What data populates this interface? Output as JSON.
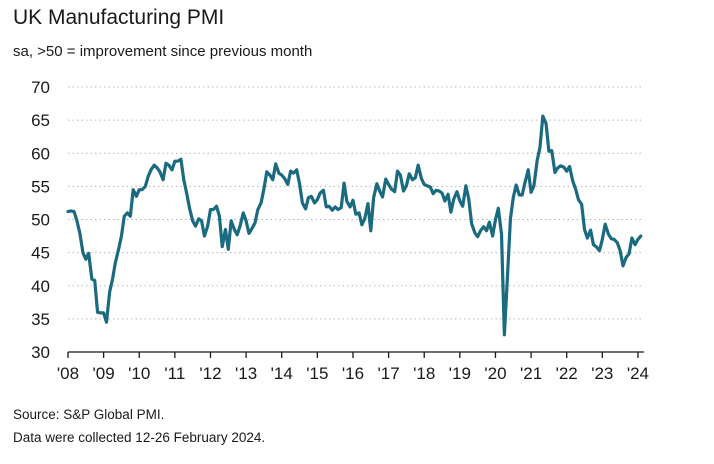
{
  "chart_data": {
    "type": "line",
    "title": "UK Manufacturing PMI",
    "subtitle": "sa, >50 = improvement since previous month",
    "xlabel": "",
    "ylabel": "",
    "ylim": [
      30,
      70
    ],
    "xlim": [
      2008.0,
      2024.17
    ],
    "grid": "horizontal-dotted",
    "line_color": "#1a6a80",
    "y_ticks": [
      "70",
      "65",
      "60",
      "55",
      "50",
      "45",
      "40",
      "35",
      "30"
    ],
    "y_tick_values": [
      70,
      65,
      60,
      55,
      50,
      45,
      40,
      35,
      30
    ],
    "x_tick_labels": [
      "'08",
      "'09",
      "'10",
      "'11",
      "'12",
      "'13",
      "'14",
      "'15",
      "'16",
      "'17",
      "'18",
      "'19",
      "'20",
      "'21",
      "'22",
      "'23",
      "'24"
    ],
    "x_tick_values": [
      2008,
      2009,
      2010,
      2011,
      2012,
      2013,
      2014,
      2015,
      2016,
      2017,
      2018,
      2019,
      2020,
      2021,
      2022,
      2023,
      2024
    ],
    "series": [
      {
        "name": "UK Manufacturing PMI",
        "x": [
          2008.0,
          2008.08,
          2008.17,
          2008.25,
          2008.33,
          2008.42,
          2008.5,
          2008.58,
          2008.67,
          2008.75,
          2008.83,
          2008.92,
          2009.0,
          2009.08,
          2009.17,
          2009.25,
          2009.33,
          2009.42,
          2009.5,
          2009.58,
          2009.67,
          2009.75,
          2009.83,
          2009.92,
          2010.0,
          2010.08,
          2010.17,
          2010.25,
          2010.33,
          2010.42,
          2010.5,
          2010.58,
          2010.67,
          2010.75,
          2010.83,
          2010.92,
          2011.0,
          2011.08,
          2011.17,
          2011.25,
          2011.33,
          2011.42,
          2011.5,
          2011.58,
          2011.67,
          2011.75,
          2011.83,
          2011.92,
          2012.0,
          2012.08,
          2012.17,
          2012.25,
          2012.33,
          2012.42,
          2012.5,
          2012.58,
          2012.67,
          2012.75,
          2012.83,
          2012.92,
          2013.0,
          2013.08,
          2013.17,
          2013.25,
          2013.33,
          2013.42,
          2013.5,
          2013.58,
          2013.67,
          2013.75,
          2013.83,
          2013.92,
          2014.0,
          2014.08,
          2014.17,
          2014.25,
          2014.33,
          2014.42,
          2014.5,
          2014.58,
          2014.67,
          2014.75,
          2014.83,
          2014.92,
          2015.0,
          2015.08,
          2015.17,
          2015.25,
          2015.33,
          2015.42,
          2015.5,
          2015.58,
          2015.67,
          2015.75,
          2015.83,
          2015.92,
          2016.0,
          2016.08,
          2016.17,
          2016.25,
          2016.33,
          2016.42,
          2016.5,
          2016.58,
          2016.67,
          2016.75,
          2016.83,
          2016.92,
          2017.0,
          2017.08,
          2017.17,
          2017.25,
          2017.33,
          2017.42,
          2017.5,
          2017.58,
          2017.67,
          2017.75,
          2017.83,
          2017.92,
          2018.0,
          2018.08,
          2018.17,
          2018.25,
          2018.33,
          2018.42,
          2018.5,
          2018.58,
          2018.67,
          2018.75,
          2018.83,
          2018.92,
          2019.0,
          2019.08,
          2019.17,
          2019.25,
          2019.33,
          2019.42,
          2019.5,
          2019.58,
          2019.67,
          2019.75,
          2019.83,
          2019.92,
          2020.0,
          2020.08,
          2020.17,
          2020.25,
          2020.33,
          2020.42,
          2020.5,
          2020.58,
          2020.67,
          2020.75,
          2020.83,
          2020.92,
          2021.0,
          2021.08,
          2021.17,
          2021.25,
          2021.33,
          2021.42,
          2021.5,
          2021.58,
          2021.67,
          2021.75,
          2021.83,
          2021.92,
          2022.0,
          2022.08,
          2022.17,
          2022.25,
          2022.33,
          2022.42,
          2022.5,
          2022.58,
          2022.67,
          2022.75,
          2022.83,
          2022.92,
          2023.0,
          2023.08,
          2023.17,
          2023.25,
          2023.33,
          2023.42,
          2023.5,
          2023.58,
          2023.67,
          2023.75,
          2023.83,
          2023.92,
          2024.0,
          2024.08
        ],
        "values": [
          51.2,
          51.3,
          51.2,
          49.8,
          48.0,
          45.0,
          44.0,
          44.9,
          41.0,
          40.8,
          36.0,
          35.9,
          35.9,
          34.5,
          39.1,
          41.0,
          43.5,
          45.5,
          47.5,
          50.5,
          51.0,
          50.5,
          54.5,
          53.5,
          54.5,
          54.5,
          55.0,
          56.5,
          57.5,
          58.2,
          57.8,
          57.2,
          56.0,
          58.5,
          58.2,
          57.5,
          58.8,
          58.8,
          59.1,
          56.0,
          54.0,
          51.5,
          49.8,
          49.0,
          50.1,
          49.8,
          47.5,
          49.0,
          51.5,
          51.5,
          52.0,
          50.5,
          45.9,
          48.5,
          45.5,
          49.8,
          48.5,
          47.7,
          49.0,
          51.0,
          49.8,
          47.9,
          48.7,
          49.5,
          51.5,
          52.5,
          54.6,
          57.2,
          56.7,
          56.0,
          58.4,
          57.0,
          56.7,
          56.2,
          55.3,
          57.3,
          57.0,
          57.5,
          55.4,
          52.5,
          51.6,
          53.3,
          53.5,
          52.5,
          53.0,
          54.0,
          54.4,
          51.9,
          52.0,
          51.4,
          51.9,
          51.5,
          51.8,
          55.5,
          52.7,
          51.9,
          52.9,
          50.8,
          51.0,
          49.2,
          50.1,
          52.4,
          48.3,
          53.3,
          55.4,
          54.3,
          53.4,
          56.1,
          55.3,
          54.6,
          54.2,
          57.3,
          56.7,
          54.3,
          55.1,
          56.9,
          56.0,
          56.3,
          58.2,
          56.2,
          55.3,
          55.1,
          54.9,
          53.9,
          54.4,
          54.3,
          54.0,
          52.8,
          53.8,
          51.1,
          53.1,
          54.2,
          52.8,
          52.0,
          55.1,
          53.1,
          49.4,
          48.0,
          47.4,
          48.3,
          48.9,
          48.3,
          49.6,
          47.5,
          50.0,
          51.7,
          47.8,
          32.6,
          40.7,
          50.1,
          53.3,
          55.2,
          53.7,
          53.7,
          55.6,
          57.5,
          54.1,
          55.1,
          58.9,
          60.9,
          65.6,
          64.5,
          60.3,
          60.4,
          57.1,
          57.8,
          58.1,
          57.9,
          57.3,
          58.0,
          55.8,
          54.6,
          53.0,
          52.3,
          48.5,
          47.2,
          48.4,
          46.2,
          45.9,
          45.3,
          47.0,
          49.3,
          47.8,
          47.1,
          47.0,
          46.5,
          45.3,
          43.0,
          44.3,
          44.8,
          47.2,
          46.2,
          47.0,
          47.5
        ]
      }
    ],
    "footer_source": "Source: S&P Global PMI.",
    "footer_note": "Data were collected 12-26 February 2024."
  }
}
